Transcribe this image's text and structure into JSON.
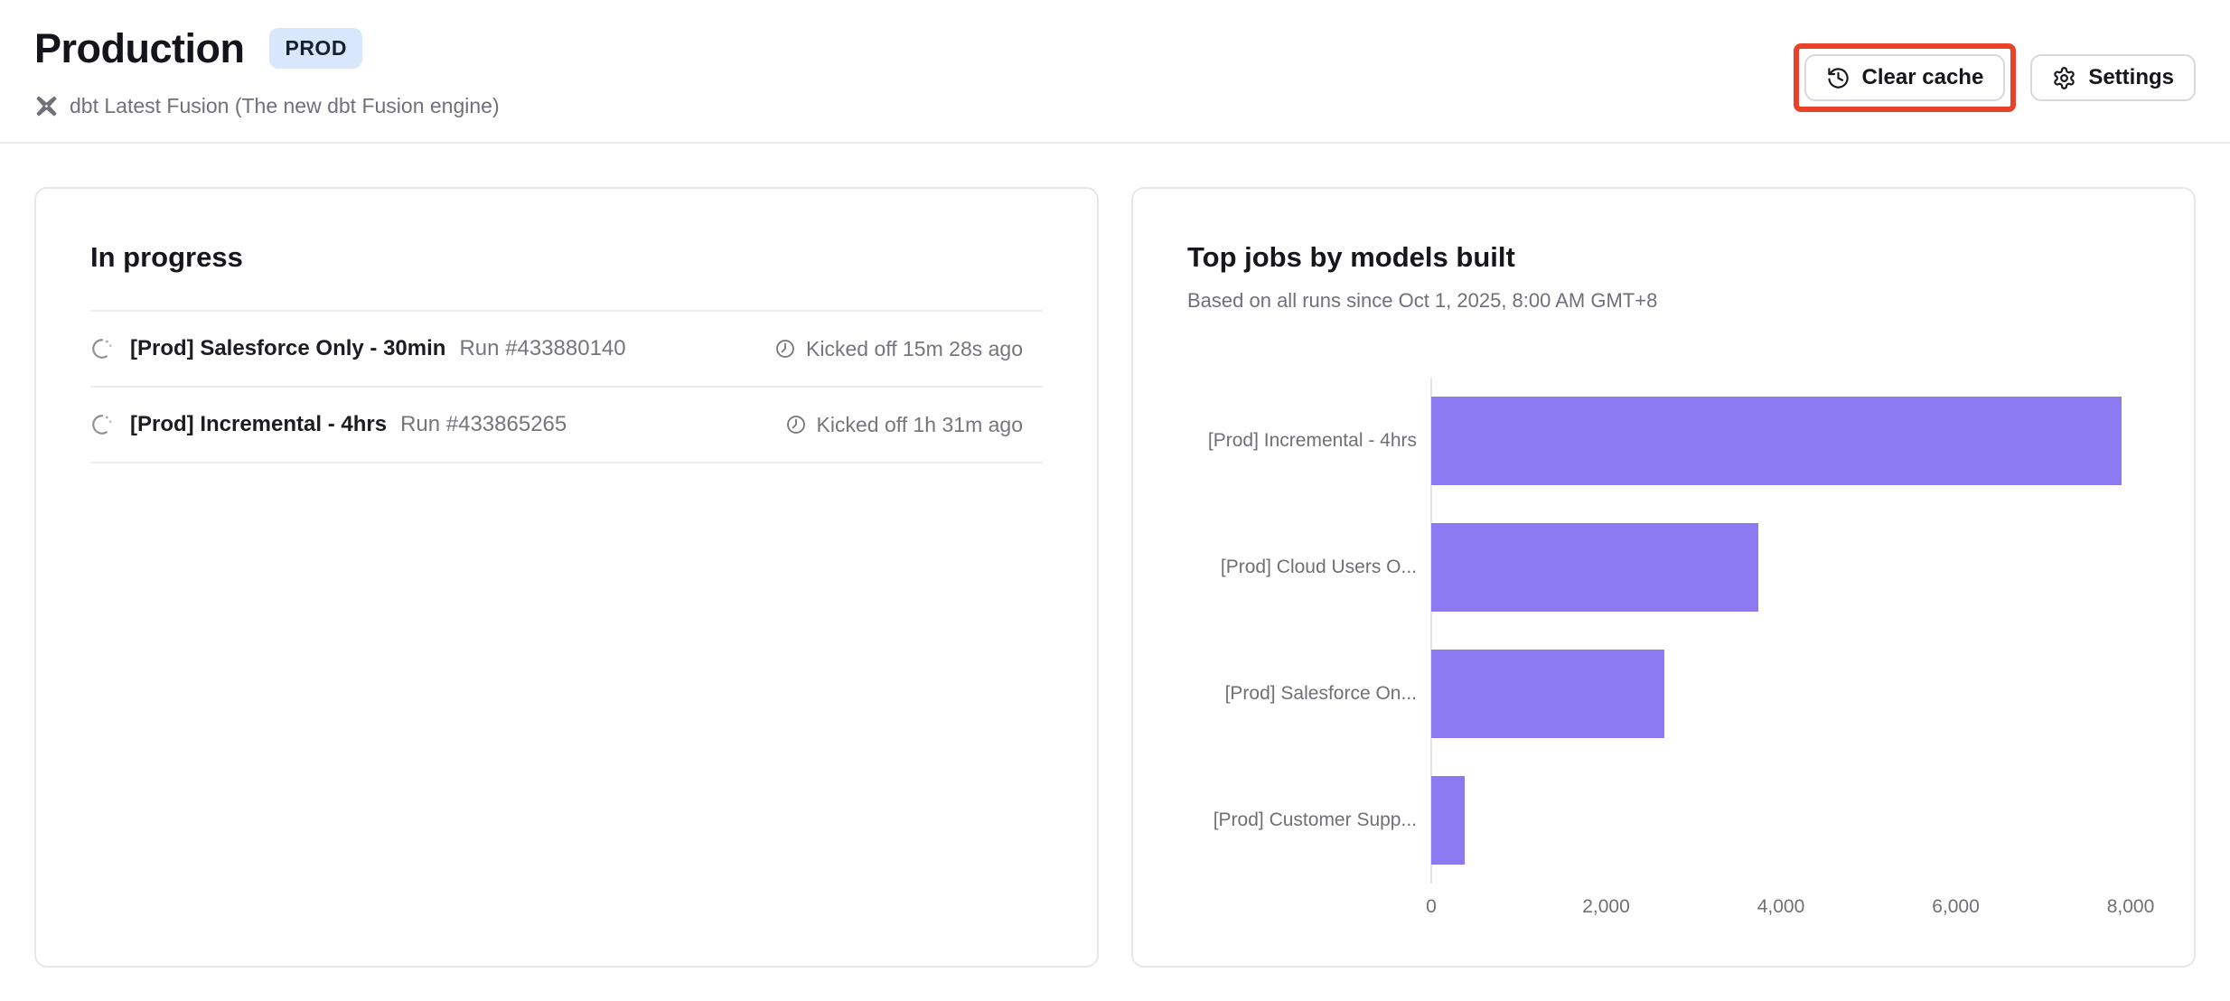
{
  "header": {
    "title": "Production",
    "badge": "PROD",
    "engine_note": "dbt Latest Fusion (The new dbt Fusion engine)",
    "buttons": {
      "clear_cache": "Clear cache",
      "settings": "Settings"
    }
  },
  "in_progress": {
    "title": "In progress",
    "runs": [
      {
        "job": "[Prod] Salesforce Only - 30min",
        "run": "Run #433880140",
        "kicked_off": "Kicked off 15m 28s ago"
      },
      {
        "job": "[Prod] Incremental - 4hrs",
        "run": "Run #433865265",
        "kicked_off": "Kicked off 1h 31m ago"
      }
    ]
  },
  "chart_card": {
    "title": "Top jobs by models built",
    "subtitle": "Based on all runs since Oct 1, 2025, 8:00 AM GMT+8"
  },
  "chart_data": {
    "type": "bar",
    "orientation": "horizontal",
    "title": "Top jobs by models built",
    "categories": [
      "[Prod] Incremental - 4hrs",
      "[Prod] Cloud Users O...",
      "[Prod] Salesforce On...",
      "[Prod] Customer Supp..."
    ],
    "values": [
      7900,
      3740,
      2670,
      380
    ],
    "xlabel": "",
    "ylabel": "",
    "xlim": [
      0,
      8200
    ],
    "xticks": [
      0,
      2000,
      4000,
      6000,
      8000
    ],
    "xtick_labels": [
      "0",
      "2,000",
      "4,000",
      "6,000",
      "8,000"
    ],
    "bar_color": "#8b7af2",
    "grid": false,
    "legend": false
  },
  "icons": {
    "engine": "dbt-fusion-icon",
    "clear_cache": "history-icon",
    "settings": "gear-icon",
    "run_status": "spinner-icon",
    "kicked_off": "clock-icon"
  },
  "colors": {
    "accent_purple": "#8b7af2",
    "badge_bg": "#d8e7fb",
    "muted_text": "#75757d",
    "annotation_red": "#e8432a",
    "border": "#e7e7ea"
  }
}
